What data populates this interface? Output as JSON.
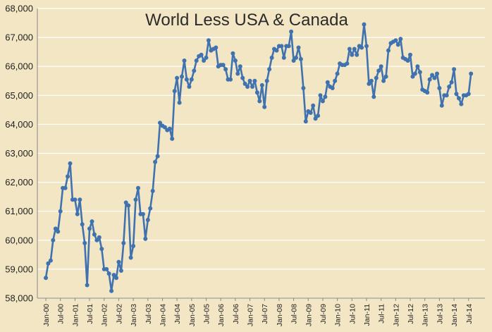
{
  "chart_data": {
    "type": "line",
    "title": "World Less USA & Canada",
    "xlabel": "",
    "ylabel": "",
    "ylim": [
      58000,
      68000
    ],
    "yticks": [
      "58,000",
      "59,000",
      "60,000",
      "61,000",
      "62,000",
      "63,000",
      "64,000",
      "65,000",
      "66,000",
      "67,000",
      "68,000"
    ],
    "grid": true,
    "legend": "none",
    "colors": {
      "line": "#3f72ae",
      "background": "#f3e6c5",
      "grid": "#ffffff"
    },
    "x_tick_labels": [
      "Jan-00",
      "Jul-00",
      "Jan-01",
      "Jul-01",
      "Jan-02",
      "Jul-02",
      "Jan-03",
      "Jul-03",
      "Jan-04",
      "Jul-04",
      "Jan-05",
      "Jul-05",
      "Jan-06",
      "Jul-06",
      "Jan-07",
      "Jul-07",
      "Jan-08",
      "Jul-08",
      "Jan-09",
      "Jul-09",
      "Jan-10",
      "Jul-10",
      "Jan-11",
      "Jul-11",
      "Jan-12",
      "Jul-12",
      "Jan-13",
      "Jul-13",
      "Jan-14",
      "Jul-14"
    ],
    "x_start": "Jan-00",
    "series": [
      {
        "values": [
          58700,
          59200,
          59300,
          60000,
          60400,
          60300,
          61000,
          61800,
          61800,
          62200,
          62650,
          61400,
          61400,
          60900,
          61400,
          60550,
          59900,
          58450,
          60400,
          60650,
          60200,
          60000,
          60100,
          59700,
          59000,
          59000,
          58850,
          58250,
          58800,
          58700,
          59250,
          58950,
          59900,
          61300,
          61200,
          59400,
          59800,
          61400,
          61800,
          60900,
          60900,
          60050,
          60700,
          61100,
          61700,
          62700,
          62900,
          64050,
          63950,
          63900,
          63800,
          63850,
          63500,
          65150,
          65600,
          64750,
          65650,
          66200,
          65550,
          65300,
          65550,
          65850,
          66200,
          66350,
          66400,
          66200,
          66300,
          66900,
          66550,
          66600,
          66650,
          66000,
          66050,
          66050,
          65900,
          65550,
          65550,
          66450,
          66200,
          65750,
          66000,
          65600,
          65400,
          65300,
          65500,
          65300,
          65500,
          65100,
          64800,
          65350,
          64600,
          65500,
          65900,
          66300,
          66600,
          66550,
          66700,
          66700,
          66300,
          66700,
          66700,
          67200,
          66200,
          66300,
          66650,
          66250,
          65250,
          64100,
          64450,
          64400,
          64650,
          64200,
          64300,
          65000,
          64800,
          64950,
          65450,
          65300,
          65250,
          65500,
          65750,
          66100,
          66050,
          66050,
          66100,
          66600,
          66400,
          66600,
          66400,
          66700,
          66650,
          67450,
          66700,
          65400,
          65500,
          64950,
          65600,
          65850,
          66000,
          65500,
          65650,
          66550,
          66800,
          66850,
          66900,
          66750,
          66950,
          66300,
          66250,
          66200,
          66400,
          65650,
          65750,
          66000,
          65800,
          65200,
          65150,
          65100,
          65550,
          65700,
          65600,
          65750,
          65250,
          64650,
          65000,
          65000,
          65300,
          65450,
          65900,
          65050,
          64900,
          64700,
          65000,
          65000,
          65050,
          65750
        ]
      }
    ]
  }
}
